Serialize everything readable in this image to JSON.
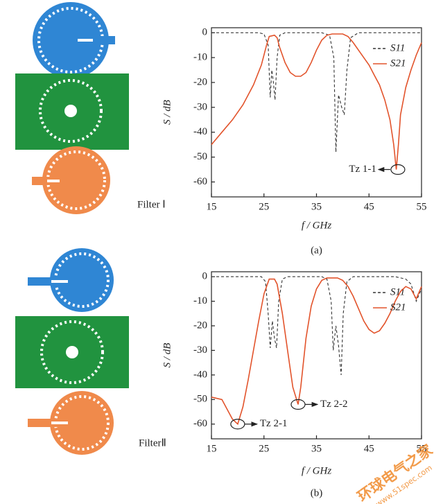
{
  "chart_data": [
    {
      "type": "line",
      "caption": "(a)",
      "diagram_label": "Filter Ⅰ",
      "x_label": "f / GHz",
      "y_label": "S / dB",
      "xlim": [
        15,
        55
      ],
      "ylim": [
        -66,
        2
      ],
      "xticks": [
        15,
        25,
        35,
        45,
        55
      ],
      "yticks": [
        0,
        -10,
        -20,
        -30,
        -40,
        -50,
        -60
      ],
      "legend": "upper right",
      "series": [
        {
          "name": "S11",
          "color": "#333333",
          "dash": true,
          "x": [
            15,
            20,
            24,
            25,
            25.8,
            26.2,
            26.5,
            26.8,
            27.1,
            27.5,
            28,
            29,
            36,
            37.5,
            38.3,
            38.7,
            39.2,
            39.8,
            40.3,
            40.8,
            41.5,
            43,
            50,
            55
          ],
          "values": [
            0,
            0,
            0,
            -0.5,
            -5,
            -26,
            -15,
            -20,
            -27,
            -10,
            -1,
            0,
            0,
            -1,
            -10,
            -48,
            -25,
            -30,
            -33,
            -15,
            -2,
            0,
            0,
            0
          ]
        },
        {
          "name": "S21",
          "color": "#e2532b",
          "dash": false,
          "x": [
            15,
            17,
            19,
            21,
            23,
            24.5,
            25.5,
            26,
            27,
            27.5,
            28,
            29,
            30,
            31,
            32,
            33,
            34,
            35,
            36,
            37,
            38,
            40,
            41,
            42,
            43,
            44,
            45,
            46,
            47,
            48,
            49,
            49.7,
            50.2,
            50.6,
            51,
            52,
            53,
            54,
            55
          ],
          "values": [
            -45,
            -40,
            -35,
            -29,
            -21,
            -13,
            -5,
            -1.5,
            -1,
            -2,
            -6,
            -12,
            -16,
            -17.5,
            -17.5,
            -16,
            -12,
            -7,
            -3,
            -1,
            -0.5,
            -0.5,
            -1.5,
            -4,
            -7,
            -10,
            -13,
            -17,
            -21,
            -27,
            -35,
            -45,
            -55,
            -45,
            -33,
            -22,
            -15,
            -9,
            -4
          ]
        }
      ],
      "annotations": [
        {
          "text": "Tz 1-1",
          "x": 50.5,
          "y": -55
        }
      ]
    },
    {
      "type": "line",
      "caption": "(b)",
      "diagram_label": "FilterⅡ",
      "x_label": "f / GHz",
      "y_label": "S / dB",
      "xlim": [
        15,
        55
      ],
      "ylim": [
        -66,
        2
      ],
      "xticks": [
        15,
        25,
        35,
        45,
        55
      ],
      "yticks": [
        0,
        -10,
        -20,
        -30,
        -40,
        -50,
        -60
      ],
      "legend": "upper right",
      "series": [
        {
          "name": "S11",
          "color": "#333333",
          "dash": true,
          "x": [
            15,
            20,
            24.5,
            25.3,
            25.8,
            26.2,
            26.6,
            27,
            27.4,
            27.8,
            28.5,
            29.5,
            36,
            37,
            37.8,
            38.2,
            38.7,
            39.2,
            39.7,
            40.1,
            40.8,
            42,
            50,
            52,
            53,
            54,
            55
          ],
          "values": [
            0,
            0,
            0,
            -2,
            -15,
            -29,
            -18,
            -25,
            -29,
            -10,
            -1,
            0,
            0,
            -1,
            -10,
            -30,
            -20,
            -28,
            -40,
            -15,
            -2,
            0,
            0,
            -1,
            -3,
            -10,
            -5
          ]
        },
        {
          "name": "S21",
          "color": "#e2532b",
          "dash": false,
          "x": [
            15,
            17,
            18,
            19,
            20,
            21,
            22,
            23,
            24,
            25,
            26,
            27,
            27.5,
            28.5,
            29.5,
            30.5,
            31.5,
            32,
            33,
            34,
            35,
            36,
            37,
            39,
            40,
            41,
            42,
            43,
            44,
            45,
            46,
            47,
            48,
            49,
            50,
            51,
            52,
            53,
            54,
            55
          ],
          "values": [
            -49,
            -50,
            -54,
            -58,
            -60,
            -53,
            -42,
            -30,
            -18,
            -7,
            -1,
            -1,
            -3,
            -15,
            -30,
            -45,
            -52,
            -45,
            -25,
            -12,
            -5,
            -1.5,
            -0.5,
            -0.5,
            -1.5,
            -4,
            -8,
            -13,
            -18,
            -21.5,
            -23,
            -22,
            -19,
            -15,
            -10,
            -6,
            -4,
            -5,
            -9,
            -4
          ]
        }
      ],
      "annotations": [
        {
          "text": "Tz 2-1",
          "x": 20,
          "y": -60
        },
        {
          "text": "Tz 2-2",
          "x": 31.5,
          "y": -52
        }
      ]
    }
  ],
  "watermark": {
    "name": "环球电气之家",
    "url": "www.51spec.com"
  }
}
